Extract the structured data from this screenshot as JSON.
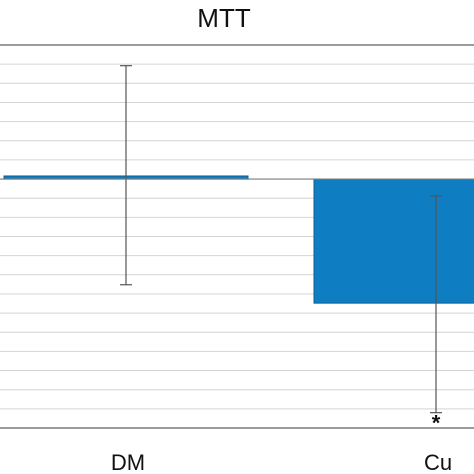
{
  "chart_data": {
    "type": "bar",
    "title": "MTT",
    "categories": [
      "DM",
      "Cu"
    ],
    "series": [
      {
        "values": [
          0.4,
          -16.2
        ],
        "error_low": [
          -13.8,
          -30.5
        ],
        "error_high": [
          14.8,
          -2.2
        ],
        "color": "#0e7dc2"
      }
    ],
    "ylim": [
      -32.5,
      17.5
    ],
    "grid": true,
    "annotations": [
      {
        "category": "Cu",
        "text": "*"
      }
    ],
    "colors": {
      "bar": "#0e7dc2",
      "bar_edge": "#0a5f94",
      "grid": "#d4d4d4",
      "axis": "#7a7a7a",
      "error_bar": "#555555"
    }
  }
}
